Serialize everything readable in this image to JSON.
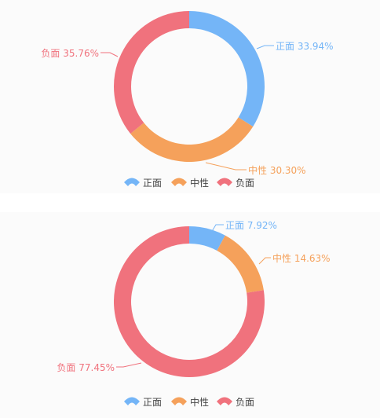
{
  "chart_data": [
    {
      "type": "pie",
      "categories": [
        "正面",
        "中性",
        "负面"
      ],
      "values": [
        33.94,
        30.3,
        35.76
      ],
      "labels": [
        "正面 33.94%",
        "中性 30.30%",
        "负面 35.76%"
      ],
      "legend": [
        "正面",
        "中性",
        "负面"
      ],
      "legend_position": "bottom-center",
      "donut": true
    },
    {
      "type": "pie",
      "categories": [
        "正面",
        "中性",
        "负面"
      ],
      "values": [
        7.92,
        14.63,
        77.45
      ],
      "labels": [
        "正面 7.92%",
        "中性 14.63%",
        "负面 77.45%"
      ],
      "legend": [
        "正面",
        "中性",
        "负面"
      ],
      "legend_position": "bottom-center",
      "donut": true
    }
  ],
  "colors": {
    "正面": "#74b5f7",
    "中性": "#f5a15b",
    "负面": "#f0727d"
  }
}
